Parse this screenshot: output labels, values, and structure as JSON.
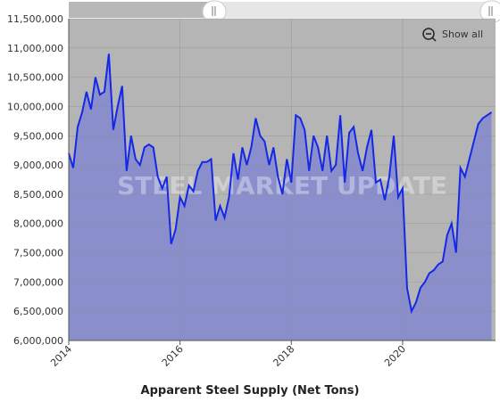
{
  "chart_data": {
    "type": "area",
    "title": "Apparent Steel Supply (Net Tons)",
    "watermark": "STEEL MARKET UPDATE",
    "reset_zoom_label": "Show all",
    "line_color": "#1428e6",
    "area_color": "#8a8fcc",
    "plot_background": "#b5b5b5",
    "grid": true,
    "xlim": [
      2014,
      2021.67
    ],
    "xticks": [
      2014,
      2016,
      2018,
      2020
    ],
    "ylim": [
      6000000,
      11500000
    ],
    "yticks": [
      {
        "value": 6000000,
        "label": "6,000,000"
      },
      {
        "value": 6500000,
        "label": "6,500,000"
      },
      {
        "value": 7000000,
        "label": "7,000,000"
      },
      {
        "value": 7500000,
        "label": "7,500,000"
      },
      {
        "value": 8000000,
        "label": "8,000,000"
      },
      {
        "value": 8500000,
        "label": "8,500,000"
      },
      {
        "value": 9000000,
        "label": "9,000,000"
      },
      {
        "value": 9500000,
        "label": "9,500,000"
      },
      {
        "value": 10000000,
        "label": "10,000,000"
      },
      {
        "value": 10500000,
        "label": "10,500,000"
      },
      {
        "value": 11000000,
        "label": "11,000,000"
      },
      {
        "value": 11500000,
        "label": "11,500,000"
      }
    ],
    "x": [
      2014,
      2014.08,
      2014.16,
      2014.24,
      2014.32,
      2014.4,
      2014.48,
      2014.56,
      2014.64,
      2014.72,
      2014.8,
      2014.88,
      2014.96,
      2015.04,
      2015.12,
      2015.2,
      2015.28,
      2015.36,
      2015.44,
      2015.52,
      2015.6,
      2015.68,
      2015.76,
      2015.84,
      2015.92,
      2016,
      2016.08,
      2016.16,
      2016.24,
      2016.32,
      2016.4,
      2016.48,
      2016.56,
      2016.64,
      2016.72,
      2016.8,
      2016.88,
      2016.96,
      2017.04,
      2017.12,
      2017.2,
      2017.28,
      2017.36,
      2017.44,
      2017.52,
      2017.6,
      2017.68,
      2017.76,
      2017.84,
      2017.92,
      2018,
      2018.08,
      2018.16,
      2018.24,
      2018.32,
      2018.4,
      2018.48,
      2018.56,
      2018.64,
      2018.72,
      2018.8,
      2018.88,
      2018.96,
      2019.04,
      2019.12,
      2019.2,
      2019.28,
      2019.36,
      2019.44,
      2019.52,
      2019.6,
      2019.68,
      2019.76,
      2019.84,
      2019.92,
      2020,
      2020.08,
      2020.16,
      2020.24,
      2020.32,
      2020.4,
      2020.48,
      2020.56,
      2020.64,
      2020.72,
      2020.8,
      2020.88,
      2020.96,
      2021.04,
      2021.12,
      2021.2,
      2021.28,
      2021.36,
      2021.44,
      2021.52,
      2021.6
    ],
    "values": [
      9200000,
      8950000,
      9650000,
      9900000,
      10250000,
      9950000,
      10500000,
      10200000,
      10250000,
      10900000,
      9600000,
      10000000,
      10350000,
      8900000,
      9500000,
      9100000,
      9000000,
      9300000,
      9350000,
      9300000,
      8800000,
      8600000,
      8800000,
      7650000,
      7900000,
      8450000,
      8300000,
      8650000,
      8550000,
      8900000,
      9050000,
      9050000,
      9100000,
      8050000,
      8300000,
      8100000,
      8450000,
      9200000,
      8750000,
      9300000,
      9000000,
      9300000,
      9800000,
      9500000,
      9400000,
      9000000,
      9300000,
      8800000,
      8500000,
      9100000,
      8700000,
      9850000,
      9800000,
      9600000,
      8900000,
      9500000,
      9300000,
      8900000,
      9500000,
      8900000,
      9000000,
      9850000,
      8700000,
      9550000,
      9650000,
      9200000,
      8900000,
      9300000,
      9600000,
      8700000,
      8750000,
      8400000,
      8800000,
      9500000,
      8450000,
      8600000,
      6900000,
      6500000,
      6650000,
      6900000,
      7000000,
      7150000,
      7200000,
      7300000,
      7350000,
      7800000,
      8000000,
      7500000,
      8950000,
      8800000,
      9100000,
      9400000,
      9700000,
      9800000,
      9850000,
      9900000
    ]
  }
}
